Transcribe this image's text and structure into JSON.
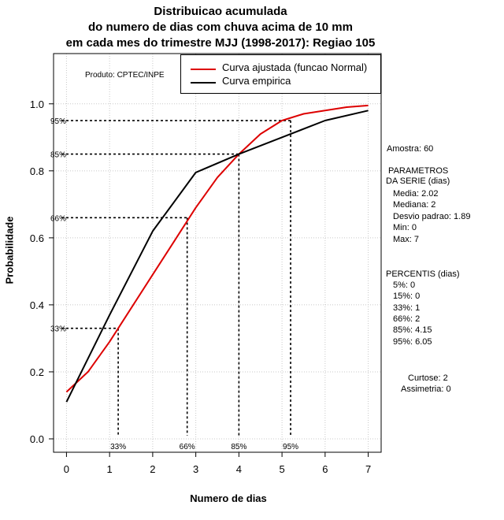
{
  "title_lines": [
    "Distribuicao acumulada",
    "do numero de dias com chuva acima de 10 mm",
    "em cada mes do trimestre MJJ (1998-2017): Regiao 105"
  ],
  "produto": "Produto: CPTEC/INPE",
  "legend": [
    {
      "label": "Curva ajustada (funcao Normal)",
      "color": "#dd0000"
    },
    {
      "label": "Curva empirica",
      "color": "#000000"
    }
  ],
  "sidebar": {
    "amostra": "Amostra: 60",
    "parametros_title": " PARAMETROS\nDA SERIE (dias)",
    "parametros": [
      "Media: 2.02",
      "Mediana: 2",
      "Desvio padrao: 1.89",
      "Min: 0",
      "Max: 7"
    ],
    "percentis_title": "PERCENTIS (dias)",
    "percentis": [
      "5%: 0",
      "15%: 0",
      "33%: 1",
      "66%: 2",
      "85%: 4.15",
      "95%: 6.05"
    ],
    "curtose": "Curtose: 2",
    "assimetria": "Assimetria: 0"
  },
  "chart_data": {
    "type": "line",
    "title": "Distribuicao acumulada do numero de dias com chuva acima de 10 mm em cada mes do trimestre MJJ (1998-2017): Regiao 105",
    "xlabel": "Numero de dias",
    "ylabel": "Probabilidade",
    "xlim": [
      -0.3,
      7.3
    ],
    "ylim": [
      -0.04,
      1.15
    ],
    "xticks": [
      0,
      1,
      2,
      3,
      4,
      5,
      6,
      7
    ],
    "yticks": [
      0.0,
      0.2,
      0.4,
      0.6,
      0.8,
      1.0
    ],
    "ytick_labels": [
      "0.0",
      "0.2",
      "0.4",
      "0.6",
      "0.8",
      "1.0"
    ],
    "grid": true,
    "series": [
      {
        "name": "Curva ajustada (funcao Normal)",
        "color": "#dd0000",
        "x": [
          0,
          0.5,
          1,
          1.5,
          2,
          2.5,
          3,
          3.5,
          4,
          4.5,
          5,
          5.5,
          6,
          6.5,
          7
        ],
        "y": [
          0.14,
          0.2,
          0.29,
          0.39,
          0.49,
          0.59,
          0.69,
          0.78,
          0.85,
          0.91,
          0.95,
          0.97,
          0.98,
          0.99,
          0.995
        ]
      },
      {
        "name": "Curva empirica",
        "color": "#000000",
        "x": [
          0,
          1,
          2,
          3,
          4,
          5,
          6,
          7
        ],
        "y": [
          0.11,
          0.37,
          0.62,
          0.795,
          0.85,
          0.9,
          0.95,
          0.98
        ]
      }
    ],
    "percentile_markers": [
      {
        "label": "33%",
        "x": 1.2,
        "y": 0.33
      },
      {
        "label": "66%",
        "x": 2.8,
        "y": 0.66
      },
      {
        "label": "85%",
        "x": 4.0,
        "y": 0.85
      },
      {
        "label": "95%",
        "x": 5.2,
        "y": 0.95
      }
    ]
  }
}
